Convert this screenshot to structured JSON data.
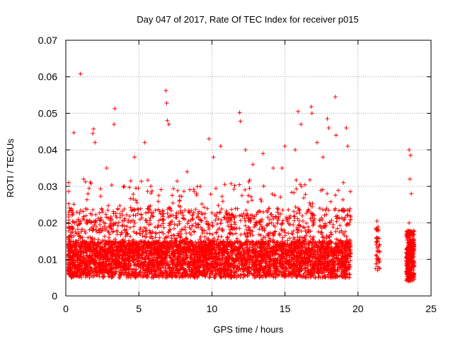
{
  "chart_data": {
    "type": "scatter",
    "title": "Day 047 of 2017, Rate Of TEC Index for receiver p015",
    "xlabel": "GPS time / hours",
    "ylabel": "ROTI / TECUs",
    "xlim": [
      0,
      25
    ],
    "ylim": [
      0,
      0.07
    ],
    "x_ticks": [
      0,
      5,
      10,
      15,
      20,
      25
    ],
    "x_tick_labels": [
      "0",
      "5",
      "10",
      "15",
      "20",
      "25"
    ],
    "y_ticks": [
      0,
      0.01,
      0.02,
      0.03,
      0.04,
      0.05,
      0.06,
      0.07
    ],
    "y_tick_labels": [
      "0",
      "0.01",
      "0.02",
      "0.03",
      "0.04",
      "0.05",
      "0.06",
      "0.07"
    ],
    "grid": true,
    "marker": "plus",
    "color": "#ff0000",
    "series": [
      {
        "x": [
          1.0,
          0.55,
          1.9,
          1.85,
          2.0,
          3.35,
          3.3,
          6.85,
          6.9,
          6.95,
          7.05,
          11.9,
          11.95,
          15.9,
          16.1,
          16.8,
          16.85,
          17.9,
          18.0,
          18.45,
          18.5,
          19.2,
          19.3,
          21.3,
          21.35,
          21.4,
          21.35,
          23.5,
          23.6,
          23.55,
          23.65,
          23.5,
          23.6,
          23.55,
          4.7,
          5.4,
          9.8,
          10.6,
          12.8,
          13.5,
          14.2,
          15.0,
          15.7,
          17.2,
          0.1,
          2.8,
          4.0,
          8.3,
          9.2,
          10.1,
          12.3,
          14.8,
          17.6,
          19.0
        ],
        "y": [
          0.0608,
          0.0447,
          0.0457,
          0.0445,
          0.042,
          0.0513,
          0.047,
          0.0562,
          0.0528,
          0.048,
          0.047,
          0.0502,
          0.0478,
          0.0505,
          0.047,
          0.0518,
          0.05,
          0.0485,
          0.046,
          0.0545,
          0.044,
          0.046,
          0.041,
          0.0205,
          0.015,
          0.01,
          0.007,
          0.04,
          0.0385,
          0.032,
          0.028,
          0.02,
          0.012,
          0.005,
          0.038,
          0.042,
          0.043,
          0.041,
          0.036,
          0.039,
          0.035,
          0.041,
          0.04,
          0.042,
          0.031,
          0.035,
          0.03,
          0.034,
          0.03,
          0.038,
          0.04,
          0.035,
          0.038,
          0.031
        ]
      }
    ]
  }
}
